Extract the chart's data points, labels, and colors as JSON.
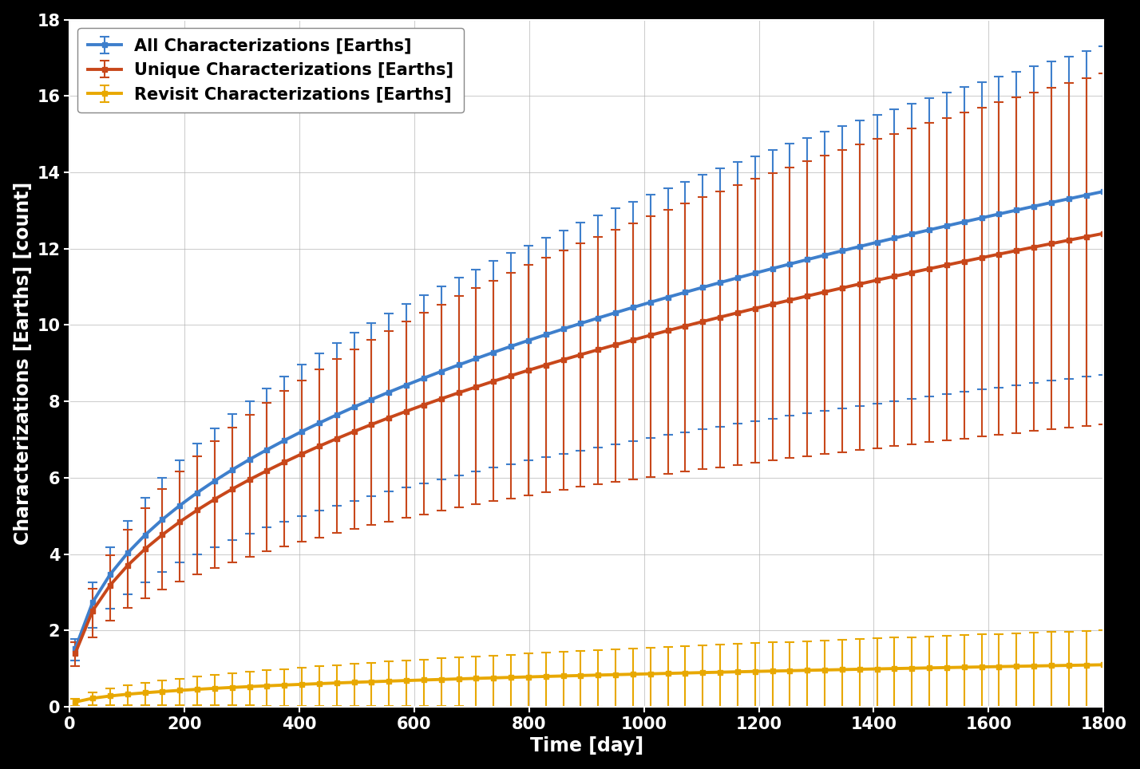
{
  "xlabel": "Time [day]",
  "ylabel": "Characterizations [Earths] [count]",
  "xlim": [
    0,
    1800
  ],
  "ylim": [
    0,
    18
  ],
  "yticks": [
    0,
    2,
    4,
    6,
    8,
    10,
    12,
    14,
    16,
    18
  ],
  "xticks": [
    0,
    200,
    400,
    600,
    800,
    1000,
    1200,
    1400,
    1600,
    1800
  ],
  "background_color": "#000000",
  "plot_bg_color": "#ffffff",
  "grid_color": "#b0b0b0",
  "series": [
    {
      "label": "All Characterizations [Earths]",
      "color": "#3e7fcc"
    },
    {
      "label": "Unique Characterizations [Earths]",
      "color": "#c8471a"
    },
    {
      "label": "Revisit Characterizations [Earths]",
      "color": "#e8a800"
    }
  ],
  "n_points": 60,
  "t_max": 1800,
  "t_start": 10,
  "all_mean_a": 13.5,
  "all_mean_b": 0.42,
  "unique_mean_a": 12.4,
  "unique_mean_b": 0.42,
  "revisit_mean_a": 1.1,
  "revisit_mean_b": 0.42,
  "all_err_up_a": 3.8,
  "all_err_up_b": 0.52,
  "all_err_dn_a": 4.8,
  "all_err_dn_b": 0.52,
  "uniq_err_up_a": 4.2,
  "uniq_err_up_b": 0.52,
  "uniq_err_dn_a": 5.0,
  "uniq_err_dn_b": 0.52,
  "rev_err_up_a": 0.9,
  "rev_err_up_b": 0.48,
  "rev_err_dn_a": 1.15,
  "rev_err_dn_b": 0.48,
  "legend_fontsize": 15,
  "axis_label_fontsize": 17,
  "tick_fontsize": 15,
  "line_width": 2.8,
  "capsize": 4,
  "elinewidth": 1.5,
  "capthick": 1.5,
  "marker_size": 4
}
